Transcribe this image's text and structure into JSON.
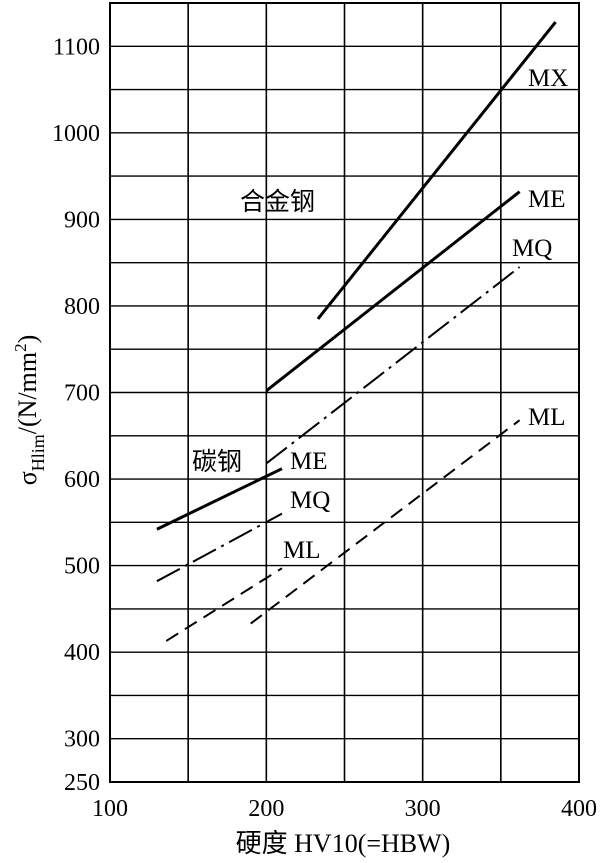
{
  "chart_data": {
    "type": "line",
    "xlabel": "硬度 HV10(=HBW)",
    "ylabel_main": "σ",
    "ylabel_sub": "Hlim",
    "ylabel_unit": "/(N/mm",
    "ylabel_sup": "2",
    "ylabel_close": ")",
    "xlim": [
      100,
      400
    ],
    "ylim": [
      250,
      1150
    ],
    "x_ticks": [
      100,
      200,
      300,
      400
    ],
    "y_ticks": [
      250,
      300,
      400,
      500,
      600,
      700,
      800,
      900,
      1000,
      1100
    ],
    "x_grid_step": 50,
    "y_grid_step": 50,
    "grid": true,
    "group_labels": [
      {
        "id": "alloy",
        "text": "合金钢"
      },
      {
        "id": "carbon",
        "text": "碳钢"
      }
    ],
    "series": [
      {
        "group": "alloy",
        "name": "MX",
        "style": "solid-thick",
        "x": [
          233,
          385
        ],
        "y": [
          785,
          1128
        ]
      },
      {
        "group": "alloy",
        "name": "ME",
        "style": "solid-thick",
        "x": [
          200,
          362
        ],
        "y": [
          702,
          932
        ]
      },
      {
        "group": "alloy",
        "name": "MQ",
        "style": "dashdot",
        "x": [
          200,
          362
        ],
        "y": [
          618,
          845
        ]
      },
      {
        "group": "alloy",
        "name": "ML",
        "style": "dashed",
        "x": [
          190,
          362
        ],
        "y": [
          433,
          668
        ]
      },
      {
        "group": "carbon",
        "name": "ME",
        "style": "solid-thick",
        "x": [
          130,
          210
        ],
        "y": [
          542,
          612
        ]
      },
      {
        "group": "carbon",
        "name": "MQ",
        "style": "dashdot",
        "x": [
          130,
          210
        ],
        "y": [
          482,
          560
        ]
      },
      {
        "group": "carbon",
        "name": "ML",
        "style": "dashed",
        "x": [
          136,
          210
        ],
        "y": [
          413,
          497
        ]
      }
    ]
  }
}
